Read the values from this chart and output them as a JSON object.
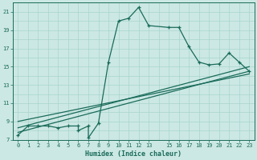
{
  "xlabel": "Humidex (Indice chaleur)",
  "bg_color": "#cce8e4",
  "grid_color": "#a8d4ce",
  "line_color": "#1a6b5a",
  "xlim": [
    -0.5,
    23.5
  ],
  "ylim": [
    7,
    22
  ],
  "xticks": [
    0,
    1,
    2,
    3,
    4,
    5,
    6,
    7,
    8,
    9,
    10,
    11,
    12,
    13,
    15,
    16,
    17,
    18,
    19,
    20,
    21,
    22,
    23
  ],
  "yticks": [
    7,
    9,
    11,
    13,
    15,
    17,
    19,
    21
  ],
  "curve_x": [
    0,
    1,
    2,
    3,
    4,
    5,
    6,
    6,
    7,
    7,
    8,
    9,
    10,
    11,
    12,
    13,
    15,
    16,
    17,
    18,
    19,
    20,
    21,
    22,
    23
  ],
  "curve_y": [
    7.5,
    8.5,
    8.5,
    8.5,
    8.3,
    8.5,
    8.5,
    8.0,
    8.5,
    7.2,
    8.8,
    15.5,
    20.0,
    20.3,
    21.5,
    19.5,
    19.3,
    19.3,
    17.2,
    15.5,
    15.2,
    15.3,
    16.5,
    15.5,
    14.5
  ],
  "ref_line1_x": [
    0,
    23
  ],
  "ref_line1_y": [
    7.8,
    14.5
  ],
  "ref_line2_x": [
    0,
    23
  ],
  "ref_line2_y": [
    8.3,
    15.0
  ],
  "ref_line3_x": [
    0,
    23
  ],
  "ref_line3_y": [
    9.0,
    14.2
  ]
}
